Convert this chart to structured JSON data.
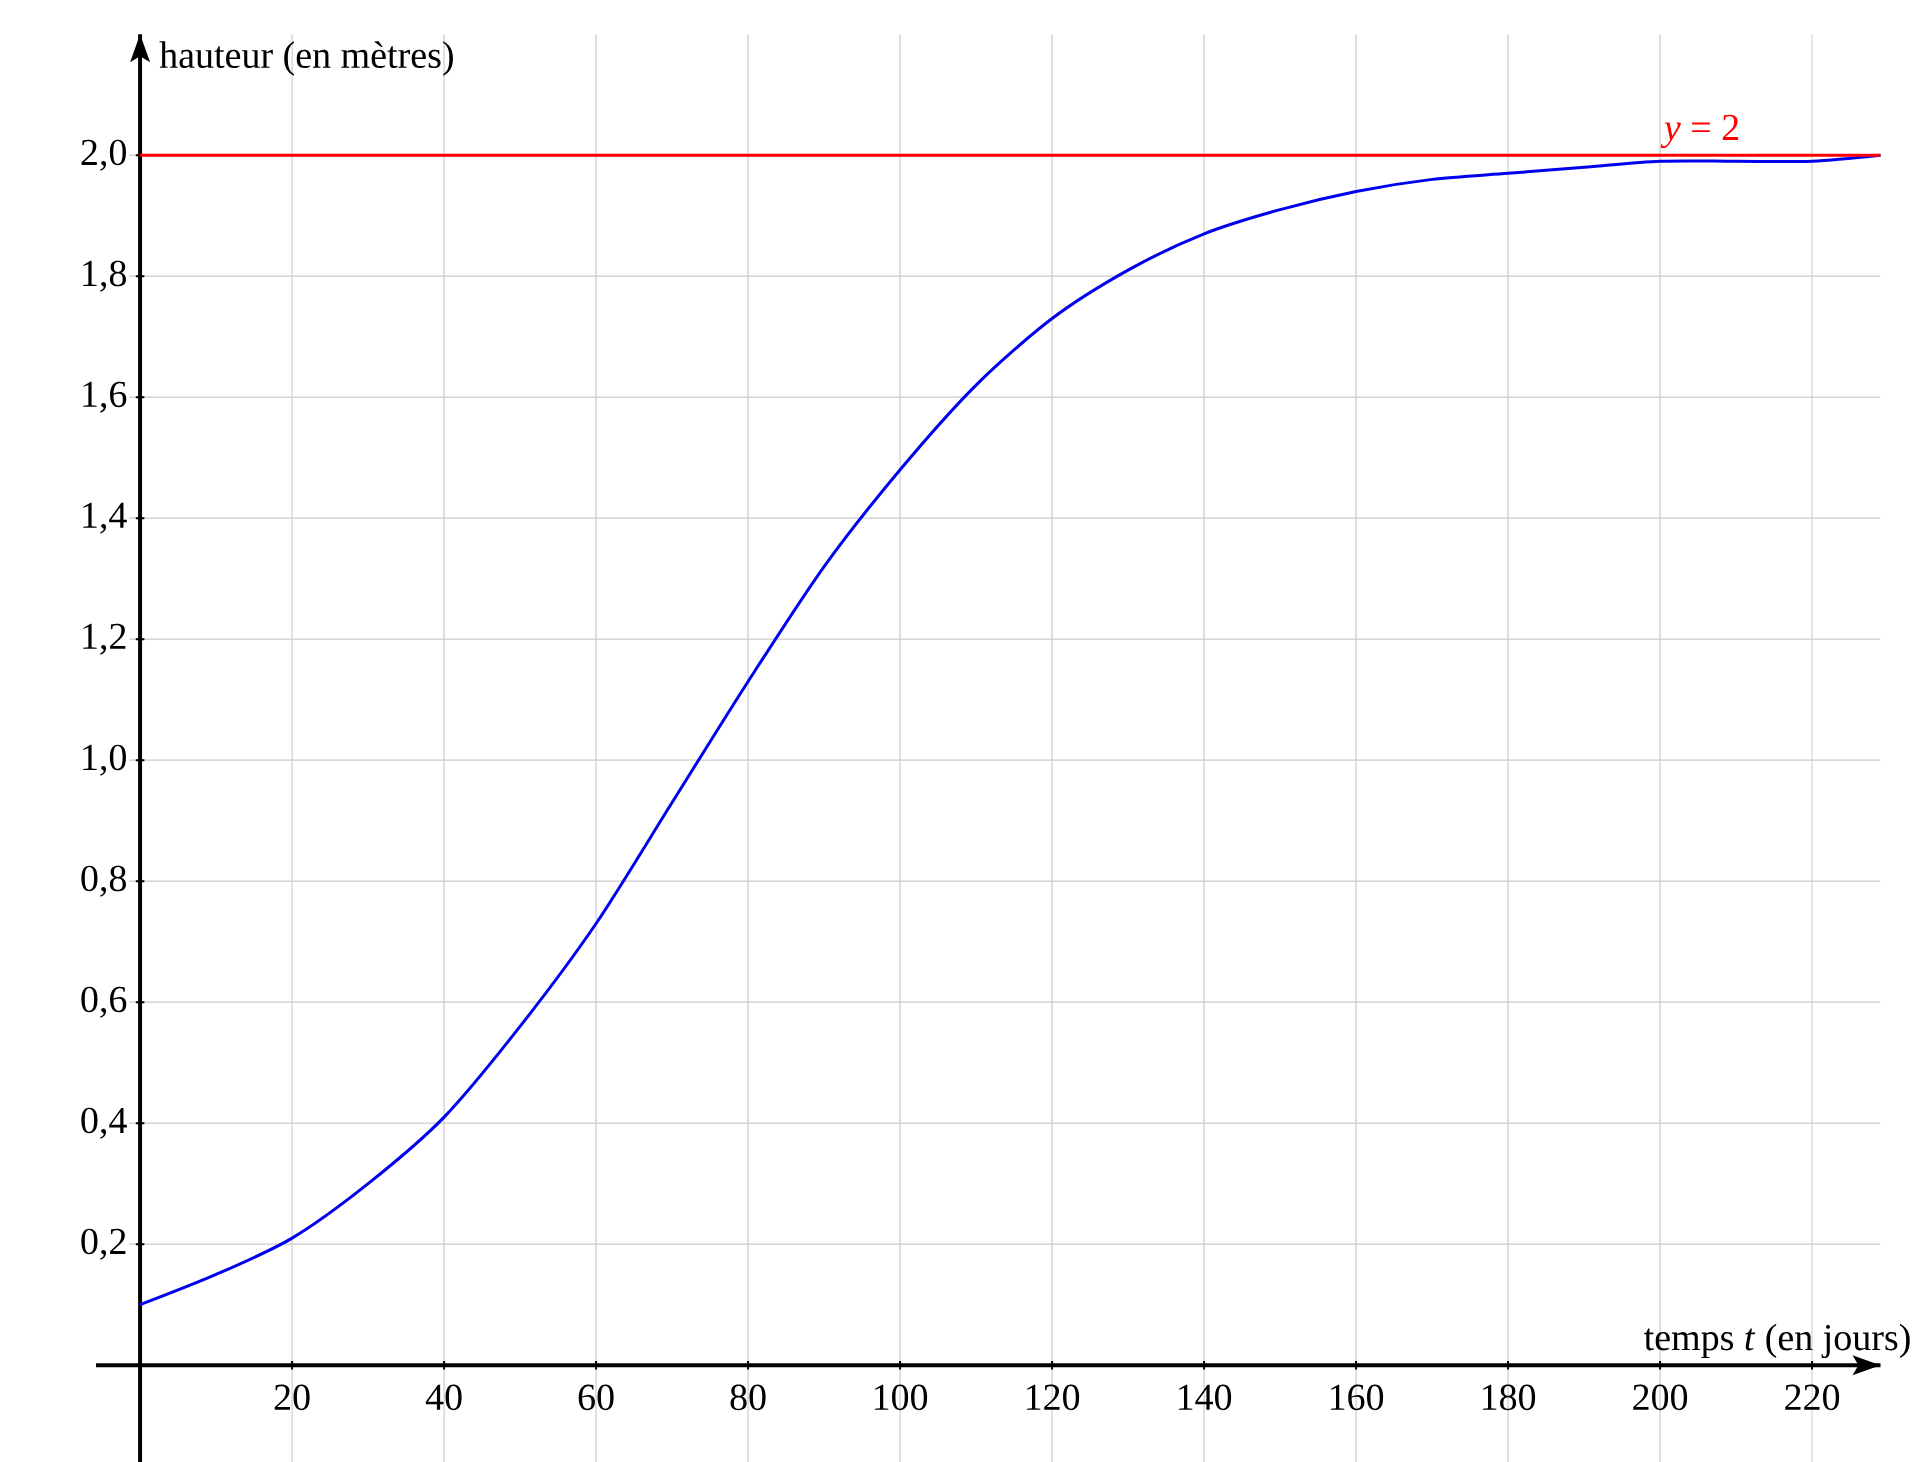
{
  "chart_data": {
    "type": "line",
    "xlabel": "temps *t* (en jours)",
    "ylabel": "hauteur (en mètres)",
    "series": [
      {
        "color": "#0000ee",
        "x": [
          0,
          10,
          20,
          30,
          40,
          50,
          60,
          70,
          80,
          90,
          100,
          110,
          120,
          130,
          140,
          150,
          160,
          170,
          180,
          190,
          200,
          210,
          220,
          229
        ],
        "values": [
          0.1,
          0.15,
          0.21,
          0.3,
          0.41,
          0.56,
          0.73,
          0.93,
          1.13,
          1.32,
          1.48,
          1.62,
          1.73,
          1.81,
          1.87,
          1.91,
          1.94,
          1.96,
          1.97,
          1.98,
          1.99,
          1.99,
          1.99,
          2.0
        ]
      }
    ],
    "xlim": [
      -5.8,
      229
    ],
    "ylim": [
      -0.16,
      2.2
    ],
    "xticks": [
      20,
      40,
      60,
      80,
      100,
      120,
      140,
      160,
      180,
      200,
      220
    ],
    "yticks": [
      {
        "value": 0.2,
        "label": "0,2"
      },
      {
        "value": 0.4,
        "label": "0,4"
      },
      {
        "value": 0.6,
        "label": "0,6"
      },
      {
        "value": 0.8,
        "label": "0,8"
      },
      {
        "value": 1.0,
        "label": "1,0"
      },
      {
        "value": 1.2,
        "label": "1,2"
      },
      {
        "value": 1.4,
        "label": "1,4"
      },
      {
        "value": 1.6,
        "label": "1,6"
      },
      {
        "value": 1.8,
        "label": "1,8"
      },
      {
        "value": 2.0,
        "label": "2,0"
      }
    ],
    "ref_lines": [
      {
        "axis": "y",
        "value": 2,
        "label": "*y* = 2",
        "color": "#ff0000"
      }
    ],
    "grid": true,
    "marker": "none",
    "line_style": "solid"
  }
}
